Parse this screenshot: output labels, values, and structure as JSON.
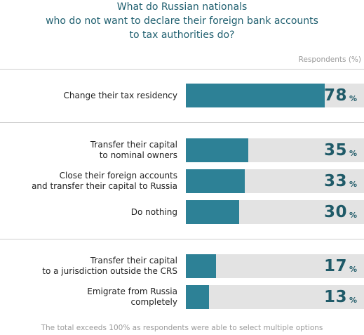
{
  "chart_data": {
    "type": "bar",
    "orientation": "horizontal",
    "title_lines": [
      "What do Russian nationals",
      "who do not want to declare their foreign bank accounts",
      "to tax authorities do?"
    ],
    "units_label": "Respondents (%)",
    "categories": [
      [
        "Change their tax residency"
      ],
      [
        "Transfer their capital",
        "to nominal owners"
      ],
      [
        "Close their foreign accounts",
        "and transfer their capital to Russia"
      ],
      [
        "Do nothing"
      ],
      [
        "Transfer their capital",
        "to a jurisdiction outside the CRS"
      ],
      [
        "Emigrate from Russia",
        "completely"
      ]
    ],
    "values": [
      78,
      35,
      33,
      30,
      17,
      13
    ],
    "value_suffix": "%",
    "groups": [
      [
        0
      ],
      [
        1,
        2,
        3
      ],
      [
        4,
        5
      ]
    ],
    "xlim": [
      0,
      100
    ],
    "footnote": "The total exceeds 100% as respondents were able to select multiple options",
    "colors": {
      "bar": "#2d8196",
      "track": "#e3e3e3",
      "value_text": "#1f5a68",
      "title": "#1f5f6f"
    }
  }
}
